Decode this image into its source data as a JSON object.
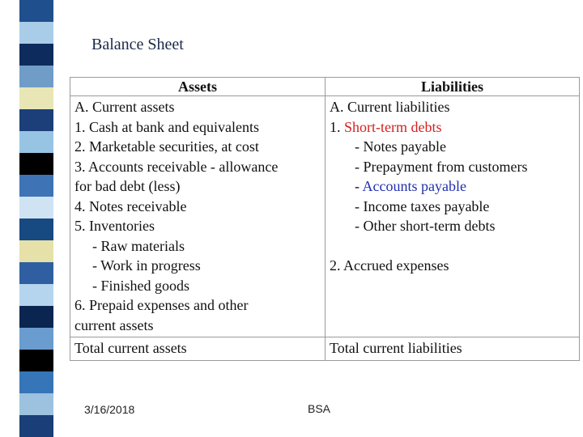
{
  "slide": {
    "title": "Balance Sheet",
    "footer_date": "3/16/2018",
    "footer_center": "BSA"
  },
  "colors": {
    "stripe": [
      "#1f4f8c",
      "#a9cde8",
      "#0d2b5c",
      "#6f9dc7",
      "#e9e6b6",
      "#1c3f7a",
      "#98c4e4",
      "#000000",
      "#3e73b5",
      "#cfe3f2",
      "#184a82",
      "#e6e1a8",
      "#2f5fa0",
      "#b5d5ee",
      "#0a2550",
      "#6a9cd0",
      "#000000",
      "#3575b8",
      "#9cc2e0",
      "#1a3e78"
    ],
    "red_text": "#d42020",
    "blue_text": "#2030b0"
  },
  "table": {
    "headers": [
      "Assets",
      "Liabilities"
    ],
    "assets": {
      "lines": [
        "A. Current assets",
        "1. Cash at bank and equivalents",
        "2. Marketable securities, at cost",
        "3. Accounts receivable -  allowance",
        "for bad debt (less)",
        "4. Notes receivable",
        "5. Inventories",
        "- Raw materials",
        "- Work in progress",
        "- Finished goods",
        "6. Prepaid expenses and other",
        "current assets"
      ],
      "total": "Total current assets"
    },
    "liabilities": {
      "current": "A. Current liabilities",
      "short_term_prefix": "1. ",
      "short_term": "Short-term debts",
      "items": [
        "- Notes payable",
        "- Prepayment from customers"
      ],
      "accounts_payable_prefix": "- ",
      "accounts_payable": "Accounts payable",
      "items2": [
        "- Income taxes payable",
        "- Other short-term debts"
      ],
      "accrued": "2. Accrued expenses",
      "total": "Total current liabilities"
    }
  }
}
